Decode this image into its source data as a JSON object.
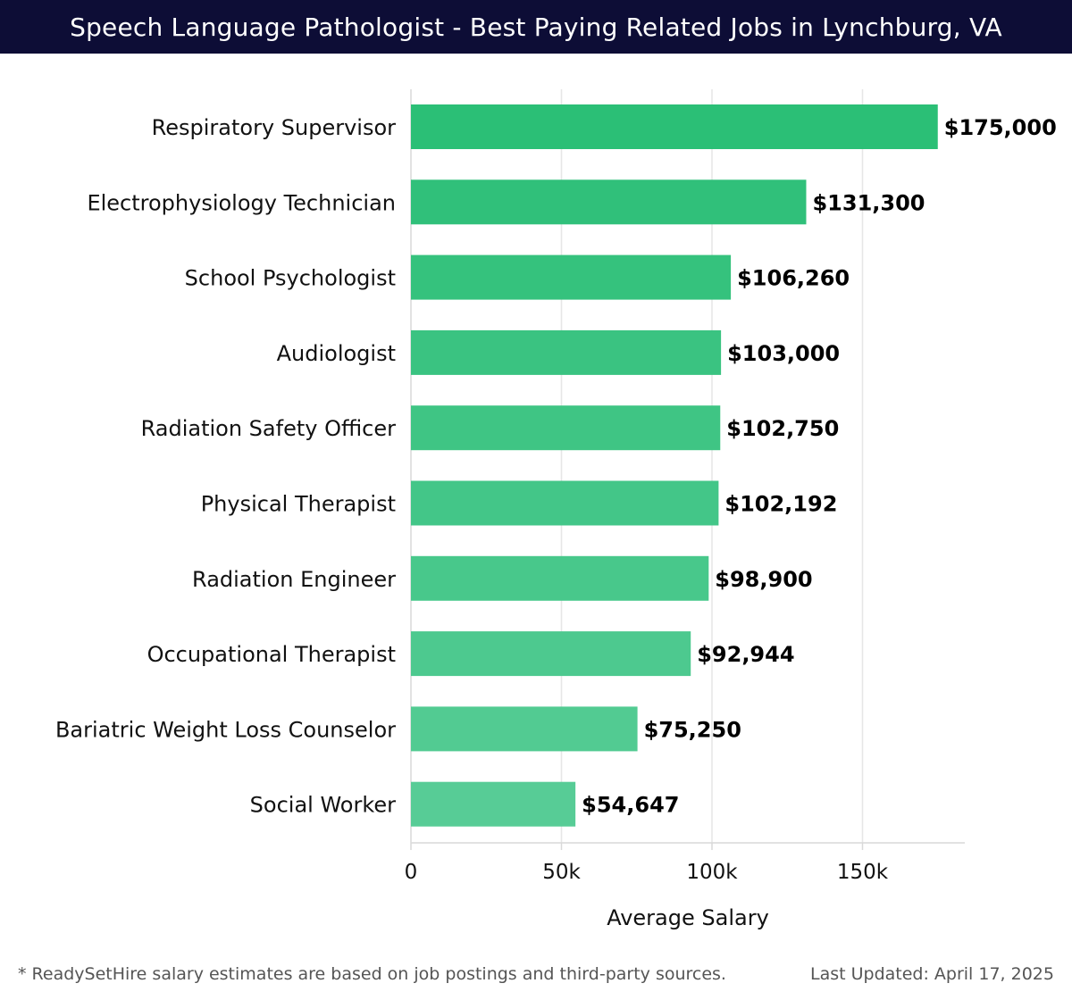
{
  "header": {
    "title": "Speech Language Pathologist - Best Paying Related Jobs in Lynchburg, VA"
  },
  "footer": {
    "note": "* ReadySetHire salary estimates are based on job postings and third-party sources.",
    "updated": "Last Updated: April 17, 2025"
  },
  "colors": {
    "header_bg": "#0d0d36",
    "bar_top": "#2bbf76",
    "bar_bottom": "#57cc96",
    "grid": "#e6e6e6",
    "text": "#111111"
  },
  "chart_data": {
    "type": "bar",
    "orientation": "horizontal",
    "categories": [
      "Respiratory Supervisor",
      "Electrophysiology Technician",
      "School Psychologist",
      "Audiologist",
      "Radiation Safety Officer",
      "Physical Therapist",
      "Radiation Engineer",
      "Occupational Therapist",
      "Bariatric Weight Loss Counselor",
      "Social Worker"
    ],
    "values": [
      175000,
      131300,
      106260,
      103000,
      102750,
      102192,
      98900,
      92944,
      75250,
      54647
    ],
    "value_labels": [
      "$175,000",
      "$131,300",
      "$106,260",
      "$103,000",
      "$102,750",
      "$102,192",
      "$98,900",
      "$92,944",
      "$75,250",
      "$54,647"
    ],
    "xlabel": "Average Salary",
    "ylabel": "",
    "xlim": [
      0,
      184000
    ],
    "xticks": [
      0,
      50000,
      100000,
      150000
    ],
    "xtick_labels": [
      "0",
      "50k",
      "100k",
      "150k"
    ],
    "grid": true
  }
}
